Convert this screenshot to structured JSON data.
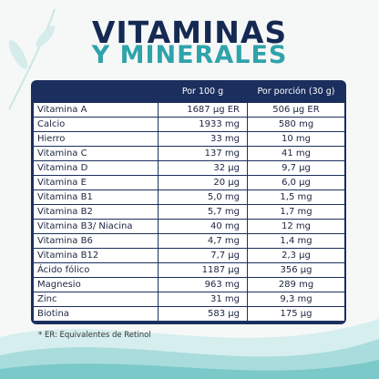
{
  "title": {
    "line1": "VITAMINAS",
    "line2": "Y MINERALES"
  },
  "table": {
    "header": [
      "Por 100 g",
      "Por porción (30 g)"
    ],
    "rows": [
      [
        "Vitamina A",
        "1687 µg ER",
        "506 µg ER"
      ],
      [
        "Calcio",
        "1933 mg",
        "580 mg"
      ],
      [
        "Hierro",
        "33 mg",
        "10 mg"
      ],
      [
        "Vitamina C",
        "137 mg",
        "41 mg"
      ],
      [
        "Vitamina D",
        "32 µg",
        "9,7 µg"
      ],
      [
        "Vitamina E",
        "20 µg",
        "6,0 µg"
      ],
      [
        "Vitamina B1",
        "5,0 mg",
        "1,5 mg"
      ],
      [
        "Vitamina B2",
        "5,7 mg",
        "1,7 mg"
      ],
      [
        "Vitamina B3/ Niacina",
        "40 mg",
        "12 mg"
      ],
      [
        "Vitamina B6",
        "4,7 mg",
        "1,4 mg"
      ],
      [
        "Vitamina B12",
        "7,7 µg",
        "2,3 µg"
      ],
      [
        "Ácido fólico",
        "1187 µg",
        "356 µg"
      ],
      [
        "Magnesio",
        "963 mg",
        "289 mg"
      ],
      [
        "Zinc",
        "31 mg",
        "9,3 mg"
      ],
      [
        "Biotina",
        "583 µg",
        "175 µg"
      ]
    ]
  },
  "footnote": "* ER: Equivalentes de Retinol"
}
